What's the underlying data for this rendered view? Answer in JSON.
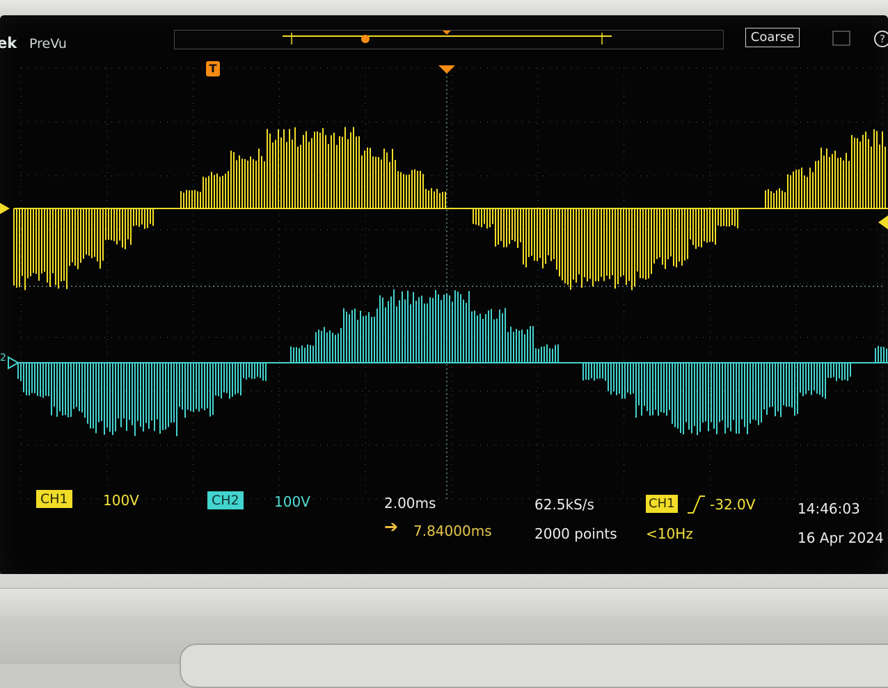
{
  "top_bar": {
    "brand": "ek",
    "mode": "PreVu",
    "coarse_label": "Coarse",
    "help_label": "?",
    "trigger_marker": "T"
  },
  "channels": [
    {
      "label": "CH1",
      "scale": "100V",
      "color": "#f1dd28"
    },
    {
      "label": "CH2",
      "scale": "100V",
      "color": "#44d4cf"
    }
  ],
  "timebase": {
    "time_per_div": "2.00ms",
    "delay": "7.84000ms"
  },
  "acquisition": {
    "sample_rate": "62.5kS/s",
    "record_length": "2000 points"
  },
  "trigger": {
    "source": "CH1",
    "level": "-32.0V",
    "frequency": "<10Hz"
  },
  "clock": {
    "time": "14:46:03",
    "date": "16 Apr 2024"
  },
  "ground_markers": {
    "ch2": "2"
  },
  "colors": {
    "screen": "#050505",
    "grid": "#4d6a6a",
    "trigger": "#f58b14"
  }
}
